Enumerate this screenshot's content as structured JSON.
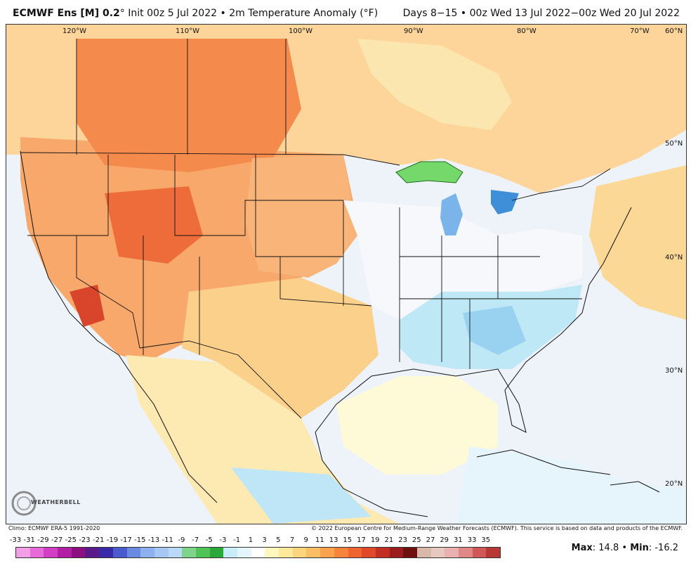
{
  "header": {
    "model": "ECMWF Ens [M] 0.2",
    "degree": "°",
    "init": "Init 00z 5 Jul 2022",
    "sep1": "•",
    "field": "2m Temperature Anomaly (°F)",
    "valid": "Days 8−15 • 00z Wed 13 Jul 2022−00z Wed 20 Jul 2022"
  },
  "lon_labels": [
    "120°W",
    "110°W",
    "100°W",
    "90°W",
    "80°W",
    "70°W"
  ],
  "lat_labels": [
    "60°N",
    "50°N",
    "40°N",
    "30°N",
    "20°N"
  ],
  "footer": {
    "climo": "Climo: ECMWF ERA-5 1991-2020",
    "copyright": "© 2022 European Centre for Medium-Range Weather Forecasts (ECMWF). This service is based on data and products of the ECMWF."
  },
  "legend": {
    "ticks": [
      "-33",
      "-31",
      "-29",
      "-27",
      "-25",
      "-23",
      "-21",
      "-19",
      "-17",
      "-15",
      "-13",
      "-11",
      "-9",
      "-7",
      "-5",
      "-3",
      "-1",
      "1",
      "3",
      "5",
      "7",
      "9",
      "11",
      "13",
      "15",
      "17",
      "19",
      "21",
      "23",
      "25",
      "27",
      "29",
      "31",
      "33",
      "35"
    ],
    "colors": [
      "#f59ee8",
      "#e86ad8",
      "#d23fc6",
      "#b21ea4",
      "#8c1080",
      "#5a1a8a",
      "#3a2aa8",
      "#4a5bd0",
      "#6b8be0",
      "#8fb0ee",
      "#a6c6f4",
      "#bad8f8",
      "#7ed48a",
      "#4ec458",
      "#2aa83a",
      "#c8ecf8",
      "#e4f6fb",
      "#ffffff",
      "#fff6c0",
      "#fee89a",
      "#fdd57c",
      "#fcbe64",
      "#faa24e",
      "#f6843c",
      "#ef6530",
      "#e04a2a",
      "#c23024",
      "#9a1c1c",
      "#6e1010",
      "#d8b8a8",
      "#e6c8c0",
      "#eab0b0",
      "#e08888",
      "#d05858",
      "#b83838"
    ]
  },
  "stats": {
    "max_label": "Max",
    "max_value": "14.8",
    "sep": "•",
    "min_label": "Min",
    "min_value": "-16.2"
  },
  "logo": {
    "text": "WEATHERBELL"
  }
}
